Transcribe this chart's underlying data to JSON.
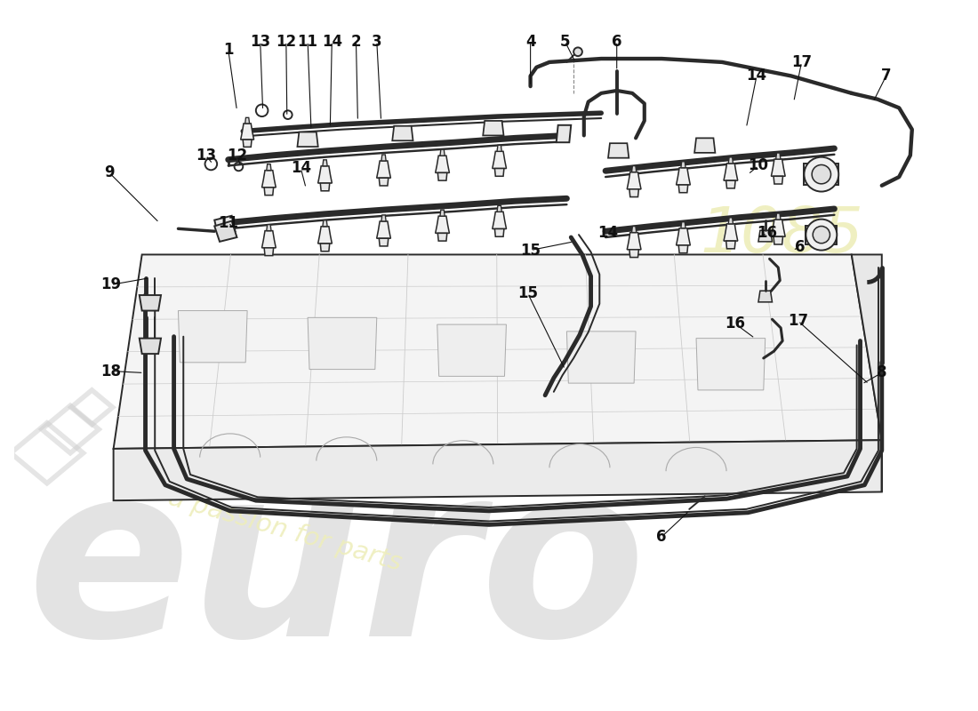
{
  "bg": "#ffffff",
  "lc": "#2a2a2a",
  "lc_light": "#aaaaaa",
  "lc_gray": "#888888",
  "lw": 1.4,
  "lw_thick": 2.8,
  "lw_rail": 5.0,
  "lw_hose": 3.5,
  "fs_label": 12,
  "watermark_euro_color": "#dddddd",
  "watermark_text_color": "#eeeebb",
  "watermark_1085_color": "#eeeebb",
  "labels": [
    [
      "1",
      248,
      58,
      258,
      128
    ],
    [
      "13",
      285,
      48,
      288,
      128
    ],
    [
      "12",
      315,
      48,
      316,
      135
    ],
    [
      "11",
      340,
      48,
      344,
      150
    ],
    [
      "14",
      368,
      48,
      366,
      148
    ],
    [
      "2",
      396,
      48,
      398,
      140
    ],
    [
      "3",
      420,
      48,
      425,
      140
    ],
    [
      "4",
      598,
      48,
      598,
      100
    ],
    [
      "5",
      638,
      48,
      650,
      72
    ],
    [
      "6",
      698,
      48,
      698,
      82
    ],
    [
      "14",
      860,
      88,
      848,
      148
    ],
    [
      "17",
      912,
      72,
      903,
      118
    ],
    [
      "7",
      1010,
      88,
      995,
      118
    ],
    [
      "9",
      110,
      200,
      168,
      258
    ],
    [
      "13",
      222,
      180,
      230,
      190
    ],
    [
      "12",
      258,
      180,
      262,
      192
    ],
    [
      "14",
      332,
      195,
      338,
      218
    ],
    [
      "10",
      862,
      192,
      850,
      202
    ],
    [
      "11",
      248,
      258,
      255,
      265
    ],
    [
      "14",
      688,
      270,
      700,
      275
    ],
    [
      "15",
      598,
      290,
      648,
      280
    ],
    [
      "16",
      872,
      270,
      862,
      276
    ],
    [
      "6",
      910,
      286,
      902,
      290
    ],
    [
      "15",
      595,
      340,
      638,
      428
    ],
    [
      "17",
      908,
      372,
      990,
      445
    ],
    [
      "16",
      835,
      375,
      858,
      392
    ],
    [
      "19",
      112,
      330,
      157,
      322
    ],
    [
      "18",
      112,
      430,
      150,
      432
    ],
    [
      "8",
      1005,
      432,
      982,
      445
    ],
    [
      "6",
      750,
      622,
      782,
      592
    ]
  ]
}
